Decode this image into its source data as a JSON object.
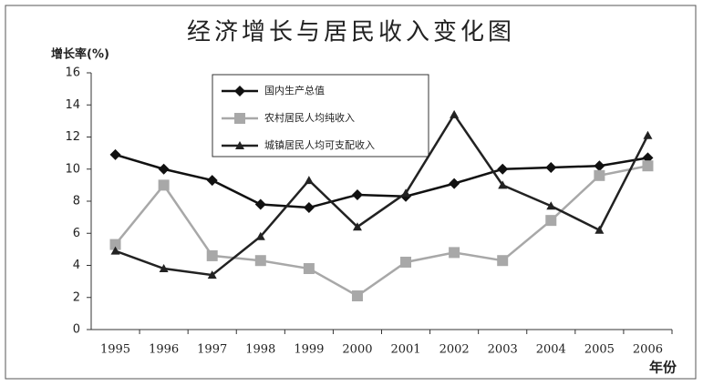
{
  "chart_data": {
    "type": "line",
    "title": "经济增长与居民收入变化图",
    "y_label": "增长率(%)",
    "x_label": "年份",
    "categories": [
      "1995",
      "1996",
      "1997",
      "1998",
      "1999",
      "2000",
      "2001",
      "2002",
      "2003",
      "2004",
      "2005",
      "2006"
    ],
    "series": [
      {
        "name": "国内生产总值",
        "color": "#111111",
        "marker": "diamond",
        "values": [
          10.9,
          10.0,
          9.3,
          7.8,
          7.6,
          8.4,
          8.3,
          9.1,
          10.0,
          10.1,
          10.2,
          10.7
        ]
      },
      {
        "name": "农村居民人均纯收入",
        "color": "#a8a8a8",
        "marker": "square",
        "values": [
          5.3,
          9.0,
          4.6,
          4.3,
          3.8,
          2.1,
          4.2,
          4.8,
          4.3,
          6.8,
          9.6,
          10.2
        ]
      },
      {
        "name": "城镇居民人均可支配收入",
        "color": "#222222",
        "marker": "triangle",
        "values": [
          4.9,
          3.8,
          3.4,
          5.8,
          9.3,
          6.4,
          8.5,
          13.4,
          9.0,
          7.7,
          6.2,
          12.1
        ]
      }
    ],
    "ylim": [
      0,
      16
    ],
    "yticks": [
      0,
      2,
      4,
      6,
      8,
      10,
      12,
      14,
      16
    ],
    "grid": false
  }
}
